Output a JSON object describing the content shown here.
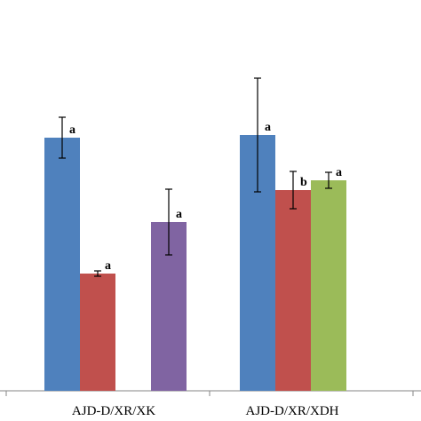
{
  "chart_data": {
    "type": "bar",
    "categories": [
      "AJD-D/XR/XK",
      "AJD-D/XR/XDH"
    ],
    "series": [
      {
        "color": "#4F81BD",
        "values": [
          285,
          288
        ],
        "errors": [
          23,
          64
        ],
        "labels": [
          "a",
          "a"
        ]
      },
      {
        "color": "#C0504D",
        "values": [
          132,
          226
        ],
        "errors": [
          3,
          21
        ],
        "labels": [
          "a",
          "b"
        ]
      },
      {
        "color": "#9BBB59",
        "values": [
          null,
          237
        ],
        "errors": [
          null,
          9
        ],
        "labels": [
          null,
          "a"
        ]
      },
      {
        "color": "#8064A2",
        "values": [
          190,
          null
        ],
        "errors": [
          37,
          null
        ],
        "labels": [
          "a",
          null
        ]
      }
    ],
    "bar_order": [
      {
        "category": 0,
        "series": 0
      },
      {
        "category": 0,
        "series": 1
      },
      {
        "category": 0,
        "series": 3
      },
      {
        "category": 1,
        "series": 0
      },
      {
        "category": 1,
        "series": 1
      },
      {
        "category": 1,
        "series": 2
      }
    ],
    "ylim": [
      0,
      440
    ],
    "grid": false,
    "legend": "none"
  }
}
